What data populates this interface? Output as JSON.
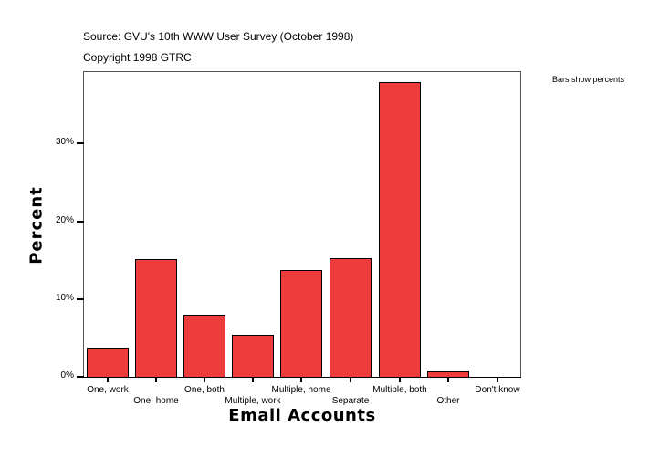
{
  "header": {
    "source": "Source: GVU's 10th WWW User Survey (October 1998)",
    "copyright": "Copyright 1998 GTRC",
    "note": "Bars show percents"
  },
  "axes": {
    "xlabel": "Email Accounts",
    "ylabel": "Percent",
    "yticks": [
      "0%",
      "10%",
      "20%",
      "30%"
    ]
  },
  "chart_data": {
    "type": "bar",
    "title": "Source: GVU's 10th WWW User Survey (October 1998)",
    "subtitle": "Copyright 1998 GTRC",
    "annotation": "Bars show percents",
    "xlabel": "Email Accounts",
    "ylabel": "Percent",
    "categories": [
      "One, work",
      "One, home",
      "One, both",
      "Multiple, work",
      "Multiple, home",
      "Separate",
      "Multiple, both",
      "Other",
      "Don't know"
    ],
    "values": [
      3.8,
      15.1,
      8.0,
      5.4,
      13.7,
      15.2,
      37.9,
      0.7,
      0.0
    ],
    "ylim": [
      0,
      39.3
    ],
    "yticks": [
      0,
      10,
      20,
      30
    ],
    "grid": false,
    "legend": "none",
    "bar_color": "#ee3b3b"
  }
}
